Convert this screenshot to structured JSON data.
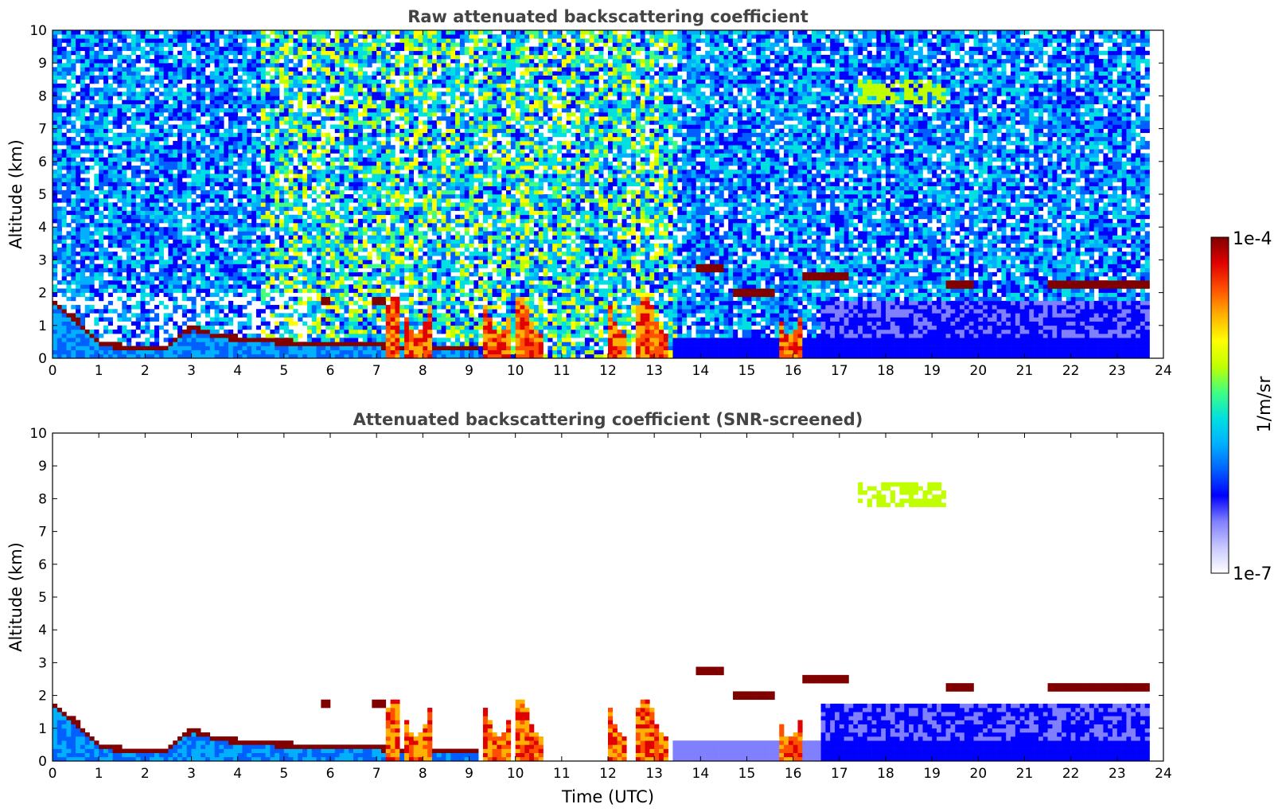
{
  "chart_data": [
    {
      "type": "heatmap",
      "title": "Raw attenuated backscattering coefficient",
      "xlabel": "",
      "ylabel": "Altitude (km)",
      "xlim": [
        0,
        24
      ],
      "ylim": [
        0,
        10
      ],
      "xticks": [
        0,
        1,
        2,
        3,
        4,
        5,
        6,
        7,
        8,
        9,
        10,
        11,
        12,
        13,
        14,
        15,
        16,
        17,
        18,
        19,
        20,
        21,
        22,
        23,
        24
      ],
      "yticks": [
        0,
        1,
        2,
        3,
        4,
        5,
        6,
        7,
        8,
        9,
        10
      ],
      "data_end_time": 23.7,
      "boundary_layer_top_km": [
        [
          0,
          1.7
        ],
        [
          0.5,
          1.2
        ],
        [
          1,
          0.45
        ],
        [
          1.5,
          0.35
        ],
        [
          2,
          0.35
        ],
        [
          2.5,
          0.35
        ],
        [
          3,
          0.95
        ],
        [
          3.5,
          0.7
        ],
        [
          4,
          0.6
        ],
        [
          4.5,
          0.55
        ],
        [
          5,
          0.5
        ],
        [
          5.5,
          0.45
        ],
        [
          6,
          0.45
        ],
        [
          6.5,
          0.4
        ],
        [
          7,
          0.4
        ],
        [
          7.5,
          0.35
        ],
        [
          8,
          0.35
        ],
        [
          8.5,
          0.3
        ],
        [
          9,
          0.3
        ],
        [
          9.2,
          0.3
        ]
      ],
      "cloud_layers_km": [
        {
          "t0": 5.8,
          "t1": 6.05,
          "alt": 1.8
        },
        {
          "t0": 6.9,
          "t1": 7.2,
          "alt": 1.75
        },
        {
          "t0": 14.7,
          "t1": 15.6,
          "alt": 2.0
        },
        {
          "t0": 16.2,
          "t1": 17.2,
          "alt": 2.55
        },
        {
          "t0": 19.3,
          "t1": 19.9,
          "alt": 2.2
        },
        {
          "t0": 21.5,
          "t1": 23.7,
          "alt": 2.2
        },
        {
          "t0": 13.9,
          "t1": 14.5,
          "alt": 2.7
        }
      ],
      "thick_aerosol_columns_utc": [
        [
          7.2,
          7.5
        ],
        [
          7.6,
          8.2
        ],
        [
          9.3,
          9.9
        ],
        [
          10.0,
          10.6
        ],
        [
          12.0,
          12.4
        ],
        [
          12.6,
          13.3
        ],
        [
          15.7,
          16.2
        ]
      ],
      "upper_cloud": {
        "t0": 17.4,
        "t1": 19.3,
        "alt_min": 7.8,
        "alt_max": 8.5
      }
    },
    {
      "type": "heatmap",
      "title": "Attenuated backscattering coefficient (SNR-screened)",
      "xlabel": "Time (UTC)",
      "ylabel": "Altitude (km)",
      "xlim": [
        0,
        24
      ],
      "ylim": [
        0,
        10
      ],
      "xticks": [
        0,
        1,
        2,
        3,
        4,
        5,
        6,
        7,
        8,
        9,
        10,
        11,
        12,
        13,
        14,
        15,
        16,
        17,
        18,
        19,
        20,
        21,
        22,
        23,
        24
      ],
      "yticks": [
        0,
        1,
        2,
        3,
        4,
        5,
        6,
        7,
        8,
        9,
        10
      ],
      "data_end_time": 23.7
    }
  ],
  "colorbar": {
    "label": "1/m/sr",
    "min_label": "1e-7",
    "max_label": "1e-4",
    "colors": [
      "#ffffff",
      "#c8c8ff",
      "#8080ff",
      "#0000ff",
      "#0060ff",
      "#00b0ff",
      "#00e0e0",
      "#40ff80",
      "#c0ff00",
      "#ffff00",
      "#ffb000",
      "#ff5000",
      "#e00000",
      "#800000"
    ]
  }
}
